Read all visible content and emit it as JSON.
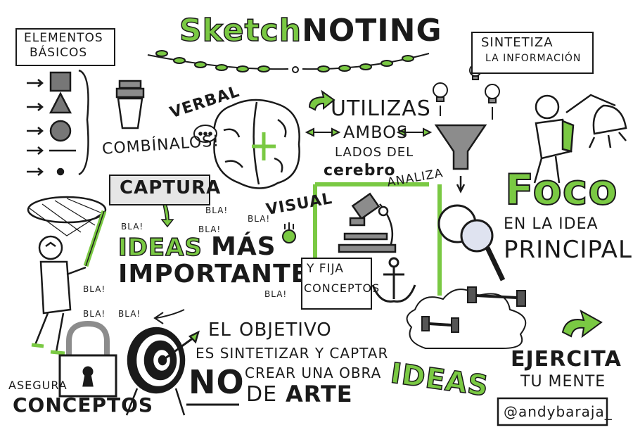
{
  "colors": {
    "accent": "#7ac943",
    "ink": "#1a1a1a",
    "shadow": "#c9cfe6",
    "grey": "#8c8c8c"
  },
  "title": {
    "part1": "Sketch",
    "part2": "NOTING"
  },
  "elementos": {
    "line1": "ELEMENTOS",
    "line2": "BÁSICOS"
  },
  "combinalos": "COMBÍNALOS!",
  "verbal": "VERBAL",
  "utilizas": {
    "line1": "UTILIZAS",
    "line2": "AMBOS",
    "line3": "LADOS DEL",
    "line4": "cerebro"
  },
  "analiza": "ANALIZA",
  "sintetiza": {
    "line1": "SINTETIZA",
    "line2": "LA INFORMACIÓN"
  },
  "captura": "CAPTURA",
  "visual": "VISUAL",
  "ideas_mas": {
    "line1a": "IDEAS",
    "line1b": "MÁS",
    "line2": "IMPORTANTES"
  },
  "bla": "BLA!",
  "fija": {
    "line1": "Y FIJA",
    "line2": "CONCEPTOS"
  },
  "foco": {
    "line1": "Foco",
    "line2": "EN LA IDEA",
    "line3": "PRINCIPAL"
  },
  "objetivo": {
    "line1a": "EL",
    "line1b": "OBJETIVO",
    "line2": "ES SINTETIZAR Y CAPTAR",
    "no": "NO",
    "line3": "CREAR UNA OBRA",
    "de": "DE",
    "arte": "ARTE"
  },
  "ideas": "IDEAS",
  "ejercita": {
    "line1": "EJERCITA",
    "line2": "TU MENTE"
  },
  "asegura": {
    "line1": "ASEGURA",
    "line2": "CONCEPTOS"
  },
  "author": "@andybaraja_"
}
